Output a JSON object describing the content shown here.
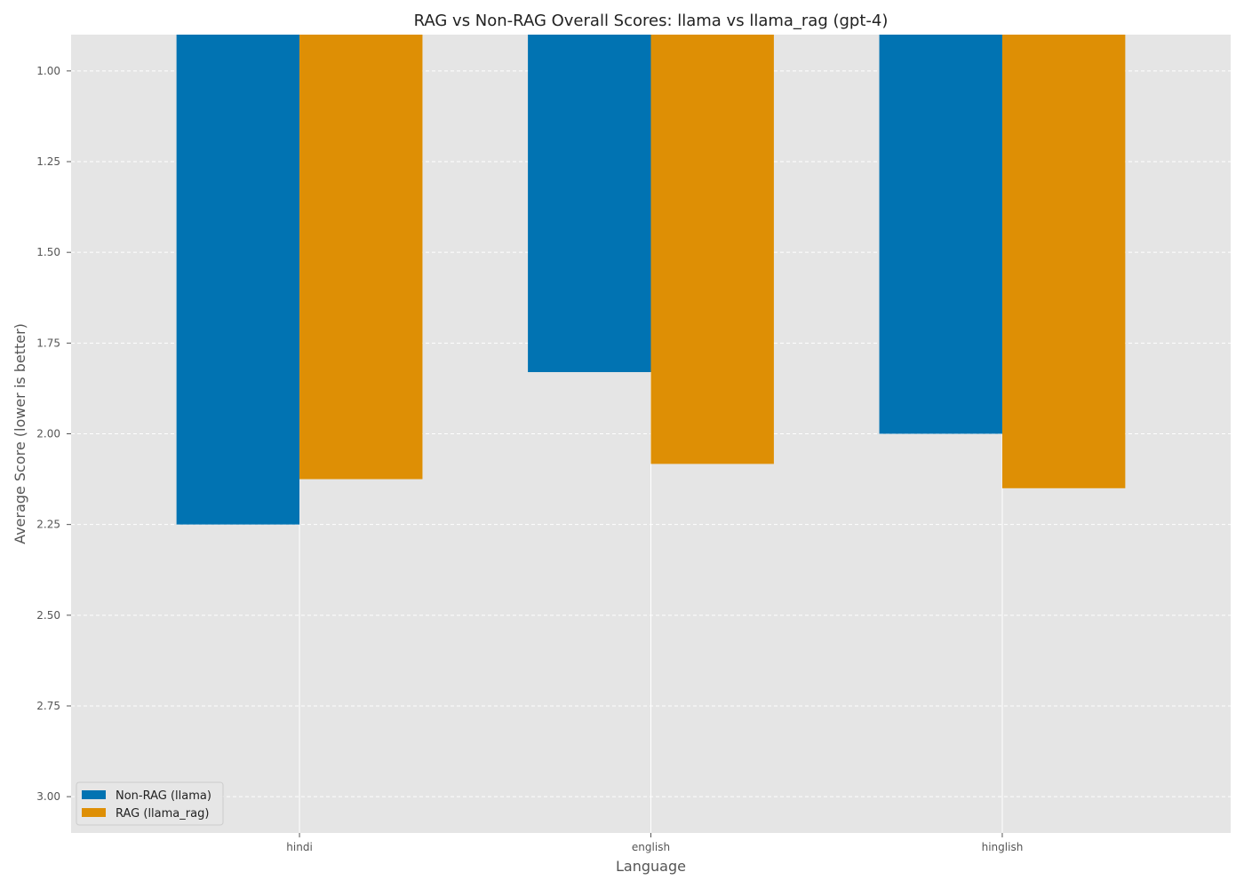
{
  "chart_data": {
    "type": "bar",
    "title": "RAG vs Non-RAG Overall Scores: llama vs llama_rag (gpt-4)",
    "xlabel": "Language",
    "ylabel": "Average Score (lower is better)",
    "categories": [
      "hindi",
      "english",
      "hinglish"
    ],
    "series": [
      {
        "name": "Non-RAG (llama)",
        "values": [
          2.25,
          1.83,
          2.0
        ],
        "color": "#0173b2"
      },
      {
        "name": "RAG (llama_rag)",
        "values": [
          2.125,
          2.083,
          2.15
        ],
        "color": "#de8f05"
      }
    ],
    "ylim": [
      0.9,
      3.1
    ],
    "y_inverted": true,
    "yticks": [
      "1.00",
      "1.25",
      "1.50",
      "1.75",
      "2.00",
      "2.25",
      "2.50",
      "2.75",
      "3.00"
    ],
    "grid": true,
    "legend_position": "bottom-left",
    "background_color": "#e5e5e5"
  }
}
